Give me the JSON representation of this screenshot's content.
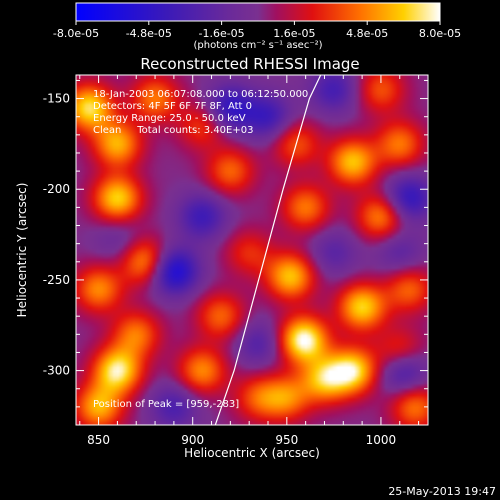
{
  "chart_data": {
    "type": "heatmap",
    "title": "Reconstructed RHESSI Image",
    "xlabel": "Heliocentric X (arcsec)",
    "ylabel": "Heliocentric Y (arcsec)",
    "xlim": [
      838,
      1025
    ],
    "ylim": [
      -330,
      -137
    ],
    "xticks": [
      850,
      900,
      950,
      1000
    ],
    "yticks": [
      -300,
      -250,
      -200,
      -150
    ],
    "colorbar": {
      "ticks": [
        "-8.0e-05",
        "-4.8e-05",
        "-1.6e-05",
        "1.6e-05",
        "4.8e-05",
        "8.0e-05"
      ],
      "unit_label": "(photons cm⁻² s⁻¹ asec⁻²)",
      "range": [
        -8e-05,
        8e-05
      ]
    },
    "annotations": [
      "18-Jan-2003 06:07:08.000 to 06:12:50.000",
      "Detectors: 4F 5F 6F 7F 8F, Att 0",
      "Energy Range: 25.0 - 50.0 keV",
      "Clean     Total counts: 3.40E+03"
    ],
    "peak_text": "Position of Peak = [959,-283]",
    "limb_curve": {
      "x": [
        912,
        922,
        935,
        948,
        962,
        968
      ],
      "y": [
        -330,
        -300,
        -250,
        -200,
        -150,
        -137
      ]
    },
    "sources": [
      {
        "x": 845,
        "y": -155,
        "v": 0.85
      },
      {
        "x": 860,
        "y": -175,
        "v": 0.7
      },
      {
        "x": 880,
        "y": -150,
        "v": 0.55
      },
      {
        "x": 905,
        "y": -165,
        "v": 0.4
      },
      {
        "x": 920,
        "y": -190,
        "v": 0.5
      },
      {
        "x": 860,
        "y": -205,
        "v": 0.8
      },
      {
        "x": 875,
        "y": -240,
        "v": 0.65
      },
      {
        "x": 850,
        "y": -255,
        "v": 0.6
      },
      {
        "x": 870,
        "y": -280,
        "v": 0.55
      },
      {
        "x": 860,
        "y": -300,
        "v": 0.9
      },
      {
        "x": 850,
        "y": -320,
        "v": 0.7
      },
      {
        "x": 930,
        "y": -235,
        "v": 0.35
      },
      {
        "x": 915,
        "y": -270,
        "v": 0.5
      },
      {
        "x": 905,
        "y": -300,
        "v": 0.6
      },
      {
        "x": 935,
        "y": -315,
        "v": 0.45
      },
      {
        "x": 955,
        "y": -175,
        "v": 0.45
      },
      {
        "x": 960,
        "y": -210,
        "v": 0.55
      },
      {
        "x": 952,
        "y": -248,
        "v": 0.75
      },
      {
        "x": 959,
        "y": -283,
        "v": 1.0
      },
      {
        "x": 970,
        "y": -305,
        "v": 0.7
      },
      {
        "x": 950,
        "y": -315,
        "v": 0.55
      },
      {
        "x": 985,
        "y": -185,
        "v": 0.75
      },
      {
        "x": 1000,
        "y": -215,
        "v": 0.6
      },
      {
        "x": 990,
        "y": -265,
        "v": 0.8
      },
      {
        "x": 985,
        "y": -300,
        "v": 0.85
      },
      {
        "x": 1010,
        "y": -175,
        "v": 0.55
      },
      {
        "x": 1015,
        "y": -255,
        "v": 0.5
      },
      {
        "x": 1010,
        "y": -290,
        "v": 0.45
      },
      {
        "x": 1000,
        "y": -145,
        "v": 0.45
      },
      {
        "x": 1018,
        "y": -320,
        "v": 0.55
      },
      {
        "x": 890,
        "y": -245,
        "v": -0.8
      },
      {
        "x": 920,
        "y": -155,
        "v": -0.6
      },
      {
        "x": 905,
        "y": -215,
        "v": -0.5
      },
      {
        "x": 890,
        "y": -320,
        "v": -0.4
      },
      {
        "x": 940,
        "y": -160,
        "v": -0.5
      },
      {
        "x": 1015,
        "y": -205,
        "v": -0.6
      },
      {
        "x": 1010,
        "y": -235,
        "v": -0.3
      },
      {
        "x": 1012,
        "y": -300,
        "v": -0.55
      },
      {
        "x": 975,
        "y": -235,
        "v": -0.3
      },
      {
        "x": 935,
        "y": -285,
        "v": -0.35
      },
      {
        "x": 975,
        "y": -145,
        "v": -0.45
      },
      {
        "x": 860,
        "y": -228,
        "v": -0.2
      }
    ]
  },
  "footer": {
    "timestamp": "25-May-2013 19:47"
  }
}
